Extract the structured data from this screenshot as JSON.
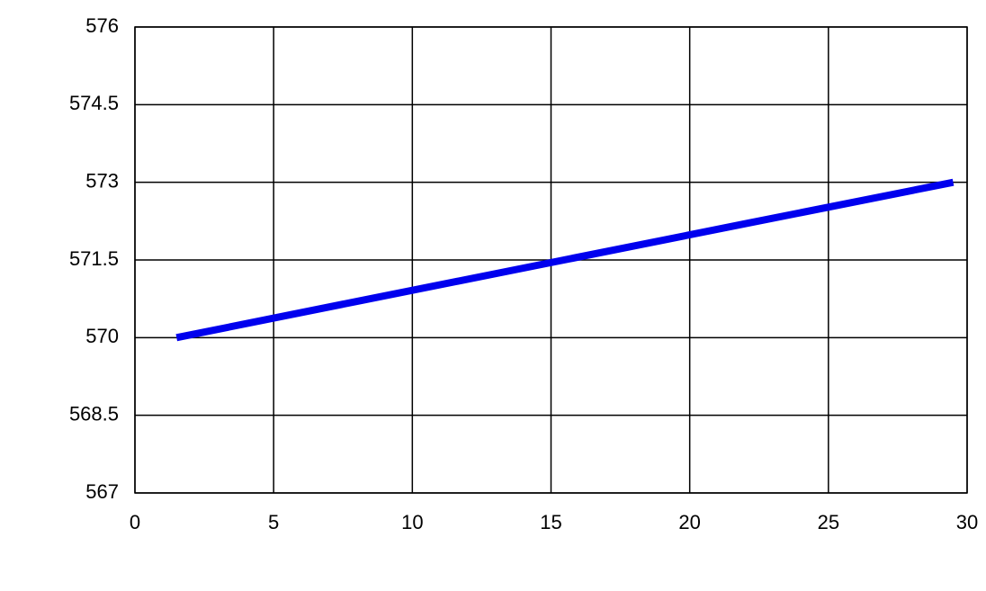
{
  "chart_data": {
    "type": "line",
    "x": [
      1.5,
      8,
      15,
      22,
      29.5
    ],
    "series": [
      {
        "color": "#0000ee",
        "values": [
          570,
          570.7,
          571.45,
          572.2,
          573
        ]
      }
    ],
    "xlim": [
      0,
      30
    ],
    "xticks": [
      0,
      5,
      10,
      15,
      20,
      25,
      30
    ],
    "ylim": [
      567,
      576
    ],
    "yticks": [
      567,
      568.5,
      570,
      571.5,
      573,
      574.5,
      576
    ],
    "grid": true
  }
}
